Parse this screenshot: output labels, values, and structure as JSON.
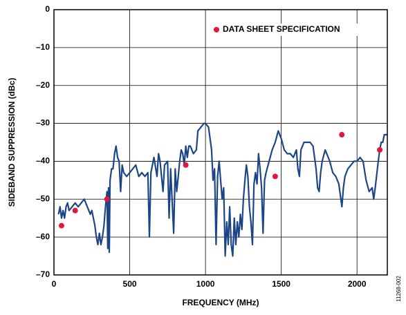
{
  "chart_data": {
    "type": "line",
    "xlabel": "FREQUENCY (MHz)",
    "ylabel": "SIDEBAND SUPPRESSION (dBc)",
    "annotation": "11268-002",
    "xlim": [
      0,
      2200
    ],
    "ylim": [
      -70,
      0
    ],
    "xticks": [
      0,
      500,
      1000,
      1500,
      2000
    ],
    "yticks": [
      0,
      {
        "value": -10,
        "label": "–10"
      },
      {
        "value": -20,
        "label": "–20"
      },
      {
        "value": -30,
        "label": "–30"
      },
      {
        "value": -40,
        "label": "–40"
      },
      {
        "value": -50,
        "label": "–50"
      },
      {
        "value": -60,
        "label": "–60"
      },
      {
        "value": -70,
        "label": "–70"
      }
    ],
    "grid": true,
    "legend": "upper right",
    "series": [
      {
        "type": "line",
        "color": "#1c4587",
        "x": [
          30,
          40,
          50,
          60,
          70,
          80,
          90,
          100,
          120,
          140,
          160,
          180,
          200,
          220,
          240,
          250,
          260,
          270,
          280,
          290,
          300,
          310,
          320,
          330,
          340,
          350,
          355,
          360,
          365,
          370,
          380,
          390,
          400,
          410,
          420,
          430,
          440,
          450,
          460,
          480,
          500,
          520,
          540,
          560,
          580,
          600,
          620,
          630,
          640,
          660,
          680,
          690,
          700,
          720,
          730,
          750,
          760,
          770,
          790,
          800,
          810,
          820,
          830,
          840,
          850,
          860,
          870,
          880,
          890,
          900,
          920,
          940,
          950,
          970,
          990,
          1000,
          1020,
          1040,
          1050,
          1060,
          1070,
          1080,
          1090,
          1100,
          1110,
          1120,
          1130,
          1140,
          1150,
          1160,
          1170,
          1180,
          1190,
          1200,
          1210,
          1220,
          1230,
          1240,
          1250,
          1260,
          1270,
          1280,
          1290,
          1300,
          1310,
          1320,
          1330,
          1340,
          1350,
          1360,
          1370,
          1380,
          1390,
          1400,
          1420,
          1440,
          1460,
          1480,
          1500,
          1520,
          1540,
          1560,
          1580,
          1600,
          1610,
          1620,
          1630,
          1650,
          1670,
          1690,
          1710,
          1720,
          1730,
          1740,
          1750,
          1760,
          1770,
          1790,
          1800,
          1820,
          1840,
          1860,
          1880,
          1890,
          1900,
          1910,
          1920,
          1940,
          1960,
          1980,
          2000,
          2020,
          2040,
          2060,
          2080,
          2100,
          2110,
          2120,
          2140,
          2150,
          2160,
          2170,
          2180,
          2190,
          2200
        ],
        "values": [
          -54,
          -52,
          -55,
          -53,
          -55,
          -52,
          -51,
          -53,
          -52,
          -51,
          -52,
          -51,
          -50,
          -52,
          -54,
          -53,
          -55,
          -57,
          -60,
          -62,
          -59,
          -62,
          -60,
          -57,
          -52,
          -48,
          -63,
          -47,
          -64,
          -45,
          -42,
          -42,
          -38,
          -36,
          -39,
          -40,
          -48,
          -41,
          -43,
          -44,
          -43,
          -42,
          -41,
          -44,
          -43,
          -44,
          -43,
          -60,
          -43,
          -39,
          -44,
          -38,
          -40,
          -48,
          -41,
          -40,
          -55,
          -42,
          -59,
          -42,
          -48,
          -44,
          -40,
          -37,
          -38,
          -41,
          -36,
          -39,
          -36,
          -36,
          -38,
          -37,
          -32,
          -31,
          -30,
          -30,
          -31,
          -37,
          -45,
          -42,
          -62,
          -44,
          -40,
          -45,
          -50,
          -47,
          -65,
          -56,
          -62,
          -52,
          -62,
          -65,
          -55,
          -62,
          -56,
          -60,
          -54,
          -58,
          -50,
          -45,
          -41,
          -44,
          -52,
          -56,
          -62,
          -46,
          -43,
          -46,
          -38,
          -42,
          -47,
          -59,
          -45,
          -43,
          -40,
          -37,
          -35,
          -32,
          -34,
          -37,
          -38,
          -38,
          -39,
          -37,
          -42,
          -44,
          -37,
          -35,
          -35,
          -35,
          -36,
          -39,
          -42,
          -47,
          -48,
          -43,
          -40,
          -37,
          -38,
          -40,
          -43,
          -44,
          -46,
          -49,
          -52,
          -47,
          -44,
          -42,
          -41,
          -40,
          -40,
          -39,
          -40,
          -45,
          -48,
          -47,
          -50,
          -47,
          -40,
          -37,
          -35,
          -35,
          -33,
          -33,
          -33
        ]
      },
      {
        "type": "scatter",
        "name": "DATA SHEET SPECIFICATION",
        "color": "#e0173f",
        "x": [
          50,
          140,
          350,
          870,
          1460,
          1900,
          2150
        ],
        "values": [
          -57,
          -53,
          -50,
          -41,
          -44,
          -33,
          -37
        ]
      }
    ]
  }
}
